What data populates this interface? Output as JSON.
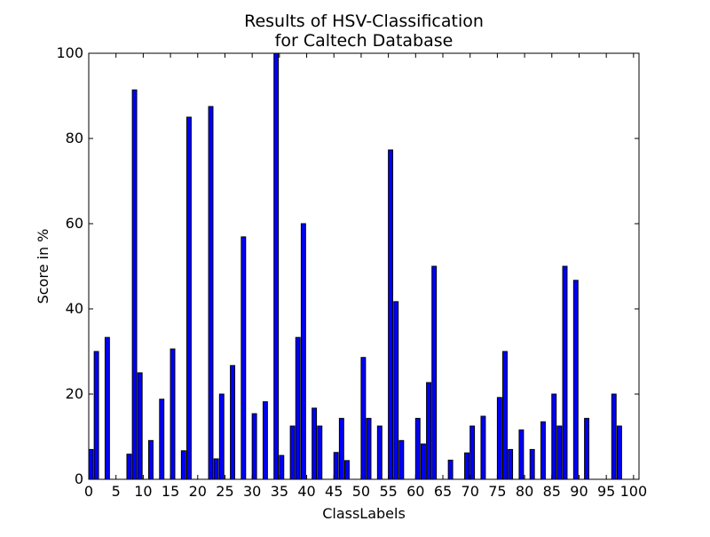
{
  "chart_data": {
    "type": "bar",
    "title_line1": "Results of HSV-Classification",
    "title_line2": "for Caltech Database",
    "xlabel": "ClassLabels",
    "ylabel": "Score in %",
    "xlim": [
      0,
      101
    ],
    "ylim": [
      0,
      100
    ],
    "xticks": [
      0,
      5,
      10,
      15,
      20,
      25,
      30,
      35,
      40,
      45,
      50,
      55,
      60,
      65,
      70,
      75,
      80,
      85,
      90,
      95,
      100
    ],
    "yticks": [
      0,
      20,
      40,
      60,
      80,
      100
    ],
    "bar_color": "#0000ff",
    "x": [
      0,
      1,
      2,
      3,
      4,
      5,
      6,
      7,
      8,
      9,
      10,
      11,
      12,
      13,
      14,
      15,
      16,
      17,
      18,
      19,
      20,
      21,
      22,
      23,
      24,
      25,
      26,
      27,
      28,
      29,
      30,
      31,
      32,
      33,
      34,
      35,
      36,
      37,
      38,
      39,
      40,
      41,
      42,
      43,
      44,
      45,
      46,
      47,
      48,
      49,
      50,
      51,
      52,
      53,
      54,
      55,
      56,
      57,
      58,
      59,
      60,
      61,
      62,
      63,
      64,
      65,
      66,
      67,
      68,
      69,
      70,
      71,
      72,
      73,
      74,
      75,
      76,
      77,
      78,
      79,
      80,
      81,
      82,
      83,
      84,
      85,
      86,
      87,
      88,
      89,
      90,
      91,
      92,
      93,
      94,
      95,
      96,
      97,
      98,
      99,
      100
    ],
    "values": [
      7,
      30,
      0,
      33.3,
      0,
      0,
      0,
      5.9,
      91.4,
      25,
      0,
      9.1,
      0,
      18.8,
      0,
      30.6,
      0,
      6.7,
      85,
      0,
      0,
      0,
      87.5,
      4.8,
      20,
      0,
      26.7,
      0,
      56.9,
      0,
      15.4,
      0,
      18.2,
      0,
      100,
      5.6,
      0,
      12.5,
      33.3,
      60,
      0,
      16.7,
      12.5,
      0,
      0,
      6.3,
      14.3,
      4.4,
      0,
      0,
      28.6,
      14.3,
      0,
      12.5,
      0,
      77.3,
      41.7,
      9.1,
      0,
      0,
      14.3,
      8.3,
      22.7,
      50,
      0,
      0,
      4.5,
      0,
      0,
      6.2,
      12.5,
      0,
      14.8,
      0,
      0,
      19.2,
      30,
      7,
      0,
      11.6,
      0,
      7,
      0,
      13.5,
      0,
      20,
      12.5,
      50,
      0,
      46.7,
      0,
      14.3,
      0,
      0,
      0,
      0,
      20,
      12.5,
      0,
      0,
      0
    ]
  }
}
